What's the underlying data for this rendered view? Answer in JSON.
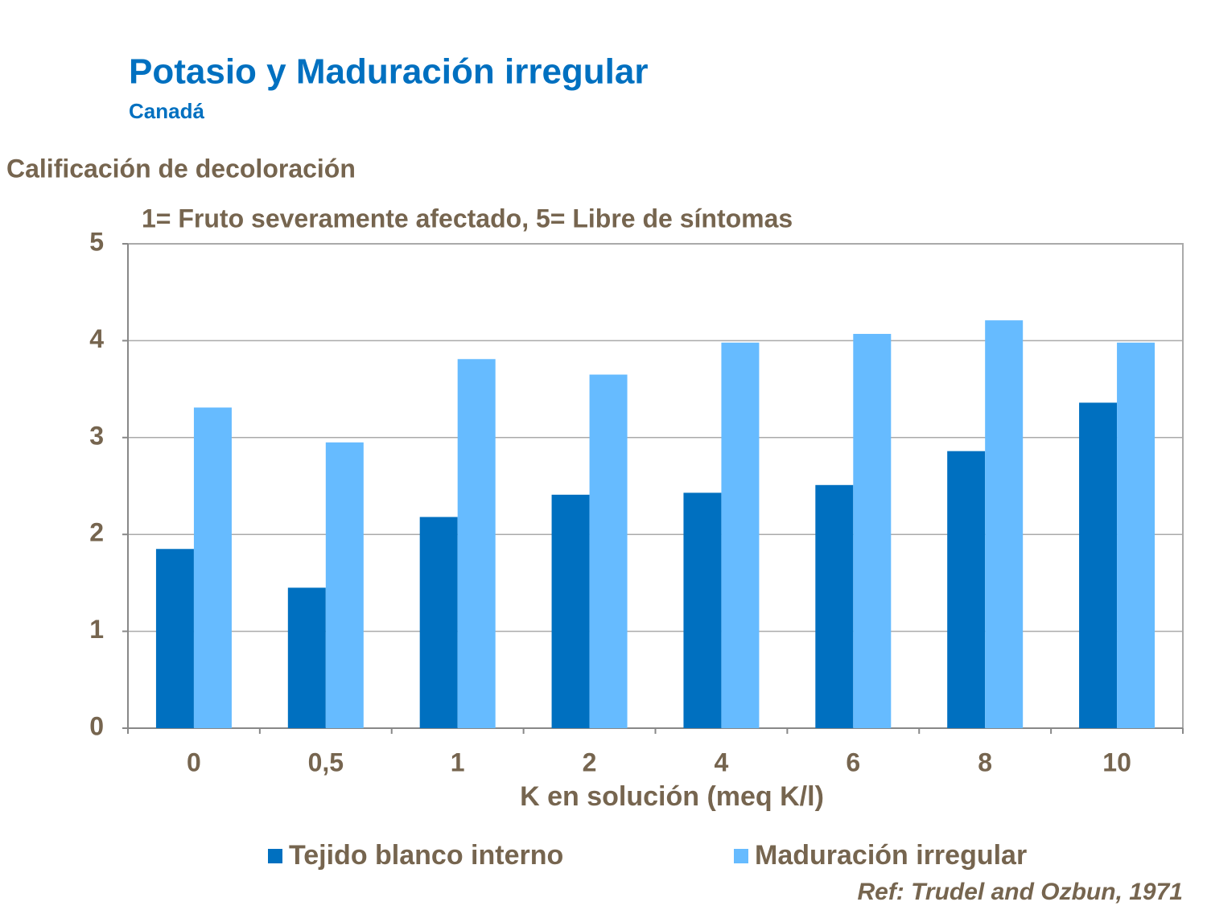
{
  "chart_data": {
    "type": "bar",
    "title": "Potasio y Maduración irregular",
    "subtitle": "Canadá",
    "y_axis_label": "Calificación de decoloración",
    "annotation": "1= Fruto severamente afectado, 5= Libre de síntomas",
    "x_axis_label": "K en solución (meq K/l)",
    "reference": "Ref: Trudel and Ozbun, 1971",
    "categories": [
      "0",
      "0,5",
      "1",
      "2",
      "4",
      "6",
      "8",
      "10"
    ],
    "series": [
      {
        "name": "Tejido blanco interno",
        "color": "#0070c0",
        "values": [
          1.85,
          1.45,
          2.18,
          2.41,
          2.43,
          2.51,
          2.86,
          3.36
        ]
      },
      {
        "name": "Maduración irregular",
        "color": "#66bbff",
        "values": [
          3.31,
          2.95,
          3.81,
          3.65,
          3.98,
          4.07,
          4.21,
          3.98
        ]
      }
    ],
    "ylim": [
      0,
      5
    ],
    "yticks": [
      0,
      1,
      2,
      3,
      4,
      5
    ],
    "grid": true,
    "legend": "bottom"
  }
}
